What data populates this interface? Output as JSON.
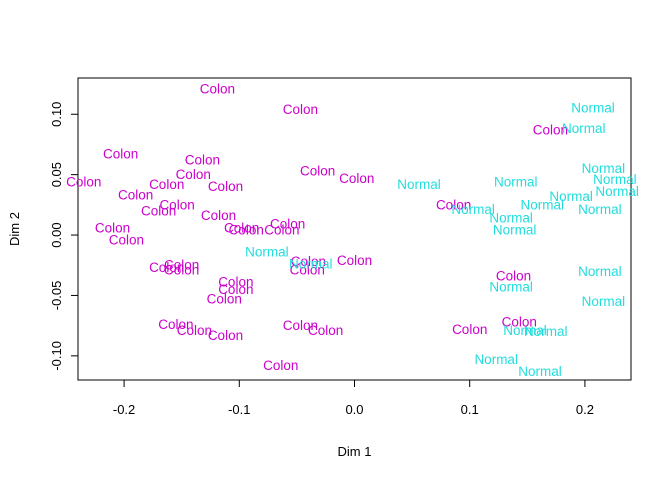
{
  "chart_data": {
    "type": "scatter",
    "title": "",
    "xlabel": "Dim 1",
    "ylabel": "Dim 2",
    "xlim": [
      -0.24,
      0.24
    ],
    "ylim": [
      -0.12,
      0.13
    ],
    "xticks": [
      -0.2,
      -0.1,
      0.0,
      0.1,
      0.2
    ],
    "xtick_labels": [
      "-0.2",
      "-0.1",
      "0.0",
      "0.1",
      "0.2"
    ],
    "yticks": [
      -0.1,
      -0.05,
      0.0,
      0.05,
      0.1
    ],
    "ytick_labels": [
      "-0.10",
      "-0.05",
      "0.00",
      "0.05",
      "0.10"
    ],
    "grid": false,
    "legend": "none",
    "marker": "text-label",
    "colors": {
      "Colon": "#CC00CC",
      "Normal": "#22DDDD"
    },
    "points": [
      {
        "x": -0.119,
        "y": 0.121,
        "label": "Colon"
      },
      {
        "x": -0.047,
        "y": 0.104,
        "label": "Colon"
      },
      {
        "x": -0.203,
        "y": 0.067,
        "label": "Colon"
      },
      {
        "x": -0.132,
        "y": 0.062,
        "label": "Colon"
      },
      {
        "x": -0.14,
        "y": 0.05,
        "label": "Colon"
      },
      {
        "x": -0.235,
        "y": 0.044,
        "label": "Colon"
      },
      {
        "x": -0.163,
        "y": 0.042,
        "label": "Colon"
      },
      {
        "x": -0.112,
        "y": 0.04,
        "label": "Colon"
      },
      {
        "x": -0.19,
        "y": 0.033,
        "label": "Colon"
      },
      {
        "x": -0.154,
        "y": 0.025,
        "label": "Colon"
      },
      {
        "x": -0.17,
        "y": 0.02,
        "label": "Colon"
      },
      {
        "x": -0.118,
        "y": 0.016,
        "label": "Colon"
      },
      {
        "x": -0.21,
        "y": 0.006,
        "label": "Colon"
      },
      {
        "x": -0.198,
        "y": -0.004,
        "label": "Colon"
      },
      {
        "x": -0.098,
        "y": 0.006,
        "label": "Colon"
      },
      {
        "x": -0.094,
        "y": 0.004,
        "label": "Colon"
      },
      {
        "x": -0.058,
        "y": 0.009,
        "label": "Colon"
      },
      {
        "x": -0.063,
        "y": 0.004,
        "label": "Colon"
      },
      {
        "x": -0.032,
        "y": 0.053,
        "label": "Colon"
      },
      {
        "x": 0.002,
        "y": 0.047,
        "label": "Colon"
      },
      {
        "x": -0.15,
        "y": -0.025,
        "label": "Colon"
      },
      {
        "x": -0.163,
        "y": -0.027,
        "label": "Colon"
      },
      {
        "x": -0.15,
        "y": -0.029,
        "label": "Colon"
      },
      {
        "x": -0.103,
        "y": -0.039,
        "label": "Colon"
      },
      {
        "x": -0.103,
        "y": -0.045,
        "label": "Colon"
      },
      {
        "x": -0.113,
        "y": -0.053,
        "label": "Colon"
      },
      {
        "x": -0.04,
        "y": -0.022,
        "label": "Colon"
      },
      {
        "x": -0.041,
        "y": -0.029,
        "label": "Colon"
      },
      {
        "x": 0.0,
        "y": -0.021,
        "label": "Colon"
      },
      {
        "x": -0.155,
        "y": -0.074,
        "label": "Colon"
      },
      {
        "x": -0.139,
        "y": -0.079,
        "label": "Colon"
      },
      {
        "x": -0.112,
        "y": -0.083,
        "label": "Colon"
      },
      {
        "x": -0.047,
        "y": -0.075,
        "label": "Colon"
      },
      {
        "x": -0.025,
        "y": -0.079,
        "label": "Colon"
      },
      {
        "x": -0.064,
        "y": -0.108,
        "label": "Colon"
      },
      {
        "x": 0.086,
        "y": 0.025,
        "label": "Colon"
      },
      {
        "x": 0.17,
        "y": 0.087,
        "label": "Colon"
      },
      {
        "x": 0.138,
        "y": -0.034,
        "label": "Colon"
      },
      {
        "x": 0.143,
        "y": -0.072,
        "label": "Colon"
      },
      {
        "x": 0.1,
        "y": -0.078,
        "label": "Colon"
      },
      {
        "x": 0.207,
        "y": 0.105,
        "label": "Normal"
      },
      {
        "x": 0.199,
        "y": 0.088,
        "label": "Normal"
      },
      {
        "x": 0.216,
        "y": 0.055,
        "label": "Normal"
      },
      {
        "x": 0.226,
        "y": 0.046,
        "label": "Normal"
      },
      {
        "x": 0.228,
        "y": 0.036,
        "label": "Normal"
      },
      {
        "x": 0.188,
        "y": 0.032,
        "label": "Normal"
      },
      {
        "x": 0.213,
        "y": 0.021,
        "label": "Normal"
      },
      {
        "x": 0.163,
        "y": 0.025,
        "label": "Normal"
      },
      {
        "x": 0.14,
        "y": 0.044,
        "label": "Normal"
      },
      {
        "x": 0.056,
        "y": 0.042,
        "label": "Normal"
      },
      {
        "x": 0.103,
        "y": 0.021,
        "label": "Normal"
      },
      {
        "x": 0.136,
        "y": 0.014,
        "label": "Normal"
      },
      {
        "x": 0.139,
        "y": 0.004,
        "label": "Normal"
      },
      {
        "x": 0.213,
        "y": -0.03,
        "label": "Normal"
      },
      {
        "x": 0.216,
        "y": -0.055,
        "label": "Normal"
      },
      {
        "x": 0.136,
        "y": -0.043,
        "label": "Normal"
      },
      {
        "x": -0.076,
        "y": -0.014,
        "label": "Normal"
      },
      {
        "x": -0.038,
        "y": -0.024,
        "label": "Normal"
      },
      {
        "x": 0.148,
        "y": -0.079,
        "label": "Normal"
      },
      {
        "x": 0.166,
        "y": -0.08,
        "label": "Normal"
      },
      {
        "x": 0.123,
        "y": -0.103,
        "label": "Normal"
      },
      {
        "x": 0.161,
        "y": -0.113,
        "label": "Normal"
      }
    ]
  }
}
